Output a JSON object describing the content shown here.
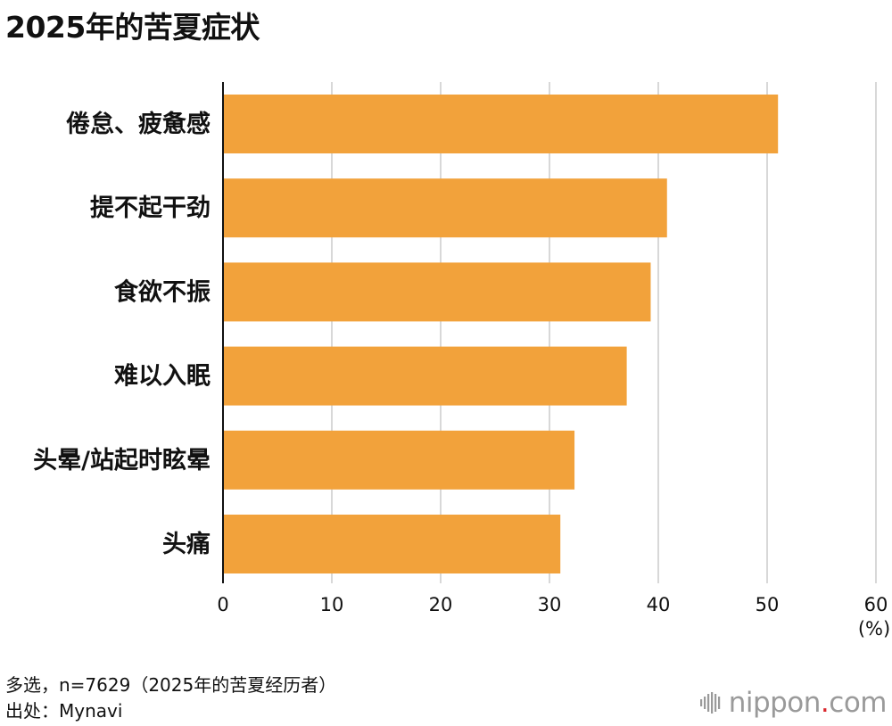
{
  "page": {
    "title": "2025年的苦夏症状"
  },
  "chart_data": {
    "type": "bar",
    "orientation": "horizontal",
    "title": "2025年的苦夏症状",
    "categories": [
      "倦怠、疲惫感",
      "提不起干劲",
      "食欲不振",
      "难以入眠",
      "头晕/站起时眩晕",
      "头痛"
    ],
    "values": [
      51.0,
      40.8,
      39.3,
      37.1,
      32.3,
      31.0
    ],
    "xlim": [
      0,
      60
    ],
    "xticks": [
      "0",
      "10",
      "20",
      "30",
      "40",
      "50",
      "60"
    ],
    "xunit": "(%)",
    "grid": true,
    "bar_color": "#f2a23b",
    "grid_color": "#cccccc"
  },
  "footer": {
    "note": "多选，n=7629（2025年的苦夏经历者）",
    "source": "出处：Mynavi"
  },
  "logo": {
    "name": "nippon",
    "dot": ".",
    "suffix": "com",
    "icon": "nippon-bars-icon"
  }
}
